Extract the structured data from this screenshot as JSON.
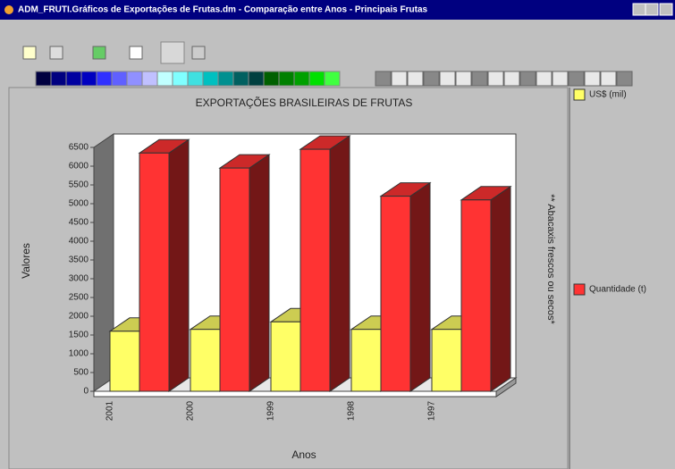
{
  "window_title": "ADM_FRUTI.Gráficos de Exportações de Frutas.dm - Comparação entre Anos - Principais Frutas",
  "chart_data": {
    "type": "bar3d",
    "title": "EXPORTAÇÕES BRASILEIRAS DE FRUTAS",
    "subtitle": "** Abacaxis frescos ou secos*",
    "x_label": "Anos",
    "y_label": "Valores",
    "categories": [
      "2001",
      "2000",
      "1999",
      "1998",
      "1997"
    ],
    "series": [
      {
        "name": "US$ (mil)",
        "color": "#ffff66",
        "values": [
          1600,
          1650,
          1850,
          1650,
          1650
        ]
      },
      {
        "name": "Quantidade (t)",
        "color": "#ff3333",
        "values": [
          6350,
          5950,
          6450,
          5200,
          5100
        ]
      }
    ],
    "ylim": [
      0,
      6500
    ],
    "yticks": [
      0,
      500,
      1000,
      1500,
      2000,
      2500,
      3000,
      3500,
      4000,
      4500,
      5000,
      5500,
      6000,
      6500
    ]
  }
}
